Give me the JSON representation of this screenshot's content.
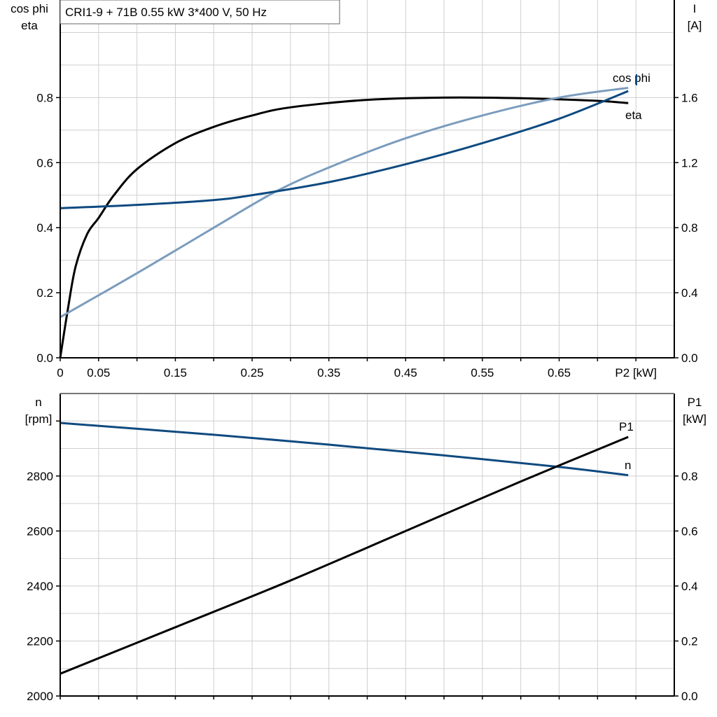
{
  "chart_data": [
    {
      "type": "line",
      "title": "CRI1-9 + 71B   0.55 kW   3*400 V, 50 Hz",
      "xlabel": "P2 [kW]",
      "ylabel_left": [
        "cos phi",
        "eta"
      ],
      "ylabel_right": [
        "I",
        "[A]"
      ],
      "xlim": [
        0,
        0.8
      ],
      "ylim_left": [
        0,
        1.1
      ],
      "ylim_right": [
        0,
        2.2
      ],
      "x_ticks": [
        "0",
        "0.05",
        "0.15",
        "0.25",
        "0.35",
        "0.45",
        "0.55",
        "0.65"
      ],
      "y_ticks_left": [
        "0.0",
        "0.2",
        "0.4",
        "0.6",
        "0.8"
      ],
      "y_ticks_right": [
        "0.0",
        "0.4",
        "0.8",
        "1.2",
        "1.6"
      ],
      "grid": true,
      "series": [
        {
          "name": "eta",
          "axis": "left",
          "color": "#000000",
          "x": [
            0,
            0.01,
            0.02,
            0.035,
            0.05,
            0.07,
            0.1,
            0.15,
            0.2,
            0.25,
            0.3,
            0.4,
            0.5,
            0.6,
            0.7,
            0.74
          ],
          "y": [
            0,
            0.15,
            0.28,
            0.38,
            0.43,
            0.5,
            0.58,
            0.66,
            0.71,
            0.745,
            0.77,
            0.793,
            0.8,
            0.798,
            0.79,
            0.783
          ]
        },
        {
          "name": "cos phi",
          "axis": "left",
          "color": "#7b9cbd",
          "x": [
            0,
            0.1,
            0.2,
            0.28,
            0.35,
            0.45,
            0.55,
            0.65,
            0.74
          ],
          "y": [
            0.125,
            0.26,
            0.4,
            0.51,
            0.585,
            0.675,
            0.745,
            0.8,
            0.83
          ]
        },
        {
          "name": "I",
          "axis": "right",
          "color": "#0e4a80",
          "x": [
            0,
            0.1,
            0.2,
            0.25,
            0.35,
            0.45,
            0.55,
            0.65,
            0.74
          ],
          "y": [
            0.92,
            0.94,
            0.97,
            1.0,
            1.08,
            1.19,
            1.32,
            1.47,
            1.64
          ]
        }
      ]
    },
    {
      "type": "line",
      "xlim": [
        0,
        0.8
      ],
      "ylabel_left": [
        "n",
        "[rpm]"
      ],
      "ylabel_right": [
        "P1",
        "[kW]"
      ],
      "ylim_left": [
        2000,
        3100
      ],
      "ylim_right": [
        0,
        1.1
      ],
      "y_ticks_left": [
        "2000",
        "2200",
        "2400",
        "2600",
        "2800"
      ],
      "y_ticks_right": [
        "0.0",
        "0.2",
        "0.4",
        "0.6",
        "0.8"
      ],
      "grid": true,
      "series": [
        {
          "name": "n",
          "axis": "left",
          "color": "#0e4a80",
          "x": [
            0,
            0.2,
            0.35,
            0.5,
            0.65,
            0.74
          ],
          "y": [
            2993,
            2950,
            2914,
            2875,
            2833,
            2803
          ]
        },
        {
          "name": "P1",
          "axis": "right",
          "color": "#000000",
          "x": [
            0,
            0.15,
            0.3,
            0.45,
            0.6,
            0.74
          ],
          "y": [
            0.081,
            0.25,
            0.42,
            0.6,
            0.78,
            0.942
          ]
        }
      ]
    }
  ]
}
